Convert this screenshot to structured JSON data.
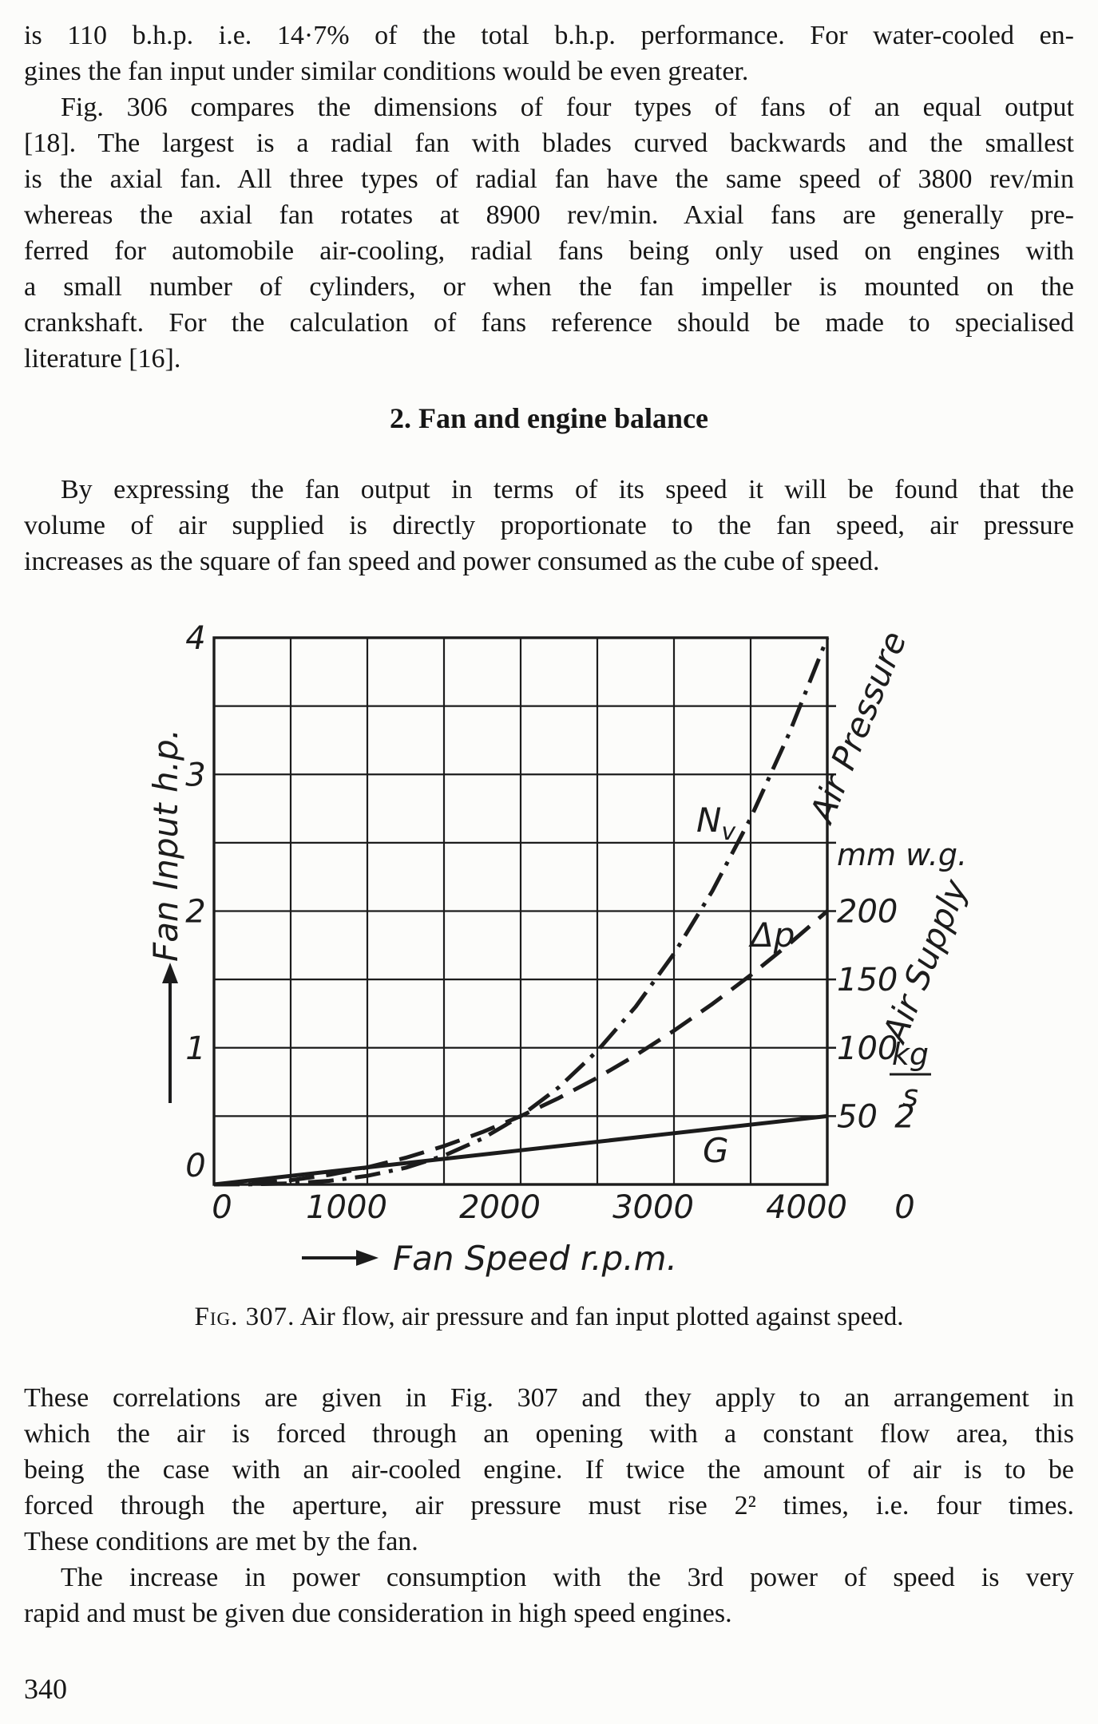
{
  "page": {
    "number": "340"
  },
  "content": {
    "p1": {
      "lines": [
        "is 110 b.h.p. i.e. 14·7% of the total b.h.p. performance. For water-cooled en-",
        "gines the fan input under similar conditions would be even greater."
      ]
    },
    "p2": {
      "lines": [
        "Fig. 306 compares the dimensions of four types of fans of an equal output",
        "[18]. The largest is a radial fan with blades curved backwards and the smallest",
        "is the axial fan. All three types of radial fan have the same speed of 3800 rev/min",
        "whereas the axial fan rotates at 8900 rev/min. Axial fans are generally pre-",
        "ferred for automobile air-cooling, radial fans being only used on engines with",
        "a small number of cylinders, or when the fan impeller is mounted on the",
        "crankshaft. For the calculation of fans reference should be made to specialised",
        "literature [16]."
      ]
    },
    "heading": "2. Fan and engine balance",
    "p3": {
      "lines": [
        "By expressing the fan output in terms of its speed it will be found that the",
        "volume of air supplied is directly proportionate to the fan speed, air pressure",
        "increases as the square of fan speed and power consumed as the cube of speed."
      ]
    },
    "caption": {
      "label": "Fig. 307.",
      "text": " Air flow, air pressure and fan input plotted against speed."
    },
    "p4": {
      "lines": [
        "These correlations are given in Fig. 307 and they apply to an arrangement in",
        "which the air is forced through an opening with a constant flow area, this",
        "being the case with an air-cooled engine. If twice the amount of air is to be",
        "forced through the aperture, air pressure must rise 2² times, i.e. four times.",
        "These conditions are met by the fan."
      ]
    },
    "p5": {
      "lines": [
        "The increase in power consumption with the 3rd power of speed is very",
        "rapid and must be given due consideration in high speed engines."
      ]
    }
  },
  "chart_data": {
    "type": "line",
    "title": "Fig. 307. Air flow, air pressure and fan input plotted against speed.",
    "xlabel": "Fan Speed r.p.m.",
    "ylabel_left": "Fan Input h.p.",
    "ylabel_pressure": "Air Pressure",
    "pressure_units": "mm w.g.",
    "ylabel_supply": "Air Supply",
    "supply_units": "kg/s",
    "supply_unit_num": "kg",
    "supply_unit_den": "s",
    "grid": "on",
    "legend": "labels-on-curves",
    "xlim": [
      0,
      4000
    ],
    "ylim_left": [
      0,
      4
    ],
    "pressure_lim": [
      0,
      400
    ],
    "supply_lim": [
      0,
      16
    ],
    "x_ticks": [
      0,
      1000,
      2000,
      3000,
      4000
    ],
    "y_ticks_left": [
      0,
      1,
      2,
      3,
      4
    ],
    "pressure_ticks": [
      50,
      100,
      150,
      200
    ],
    "supply_ticks": [
      0,
      2
    ],
    "grid_step_x": 500,
    "grid_step_y_hp": 0.5,
    "axis_hp_per_unit": {
      "left": 1,
      "pressure": 0.01,
      "supply": 0.25
    },
    "series": [
      {
        "name": "Nv",
        "label_main": "N",
        "label_sub": "v",
        "quantity": "Fan input",
        "unit": "h.p.",
        "axis": "left",
        "style": "dash-dot",
        "relation": "cube of speed",
        "x": [
          0,
          250,
          500,
          750,
          1000,
          1250,
          1500,
          1750,
          2000,
          2250,
          2500,
          2750,
          3000,
          3250,
          3500,
          3750,
          4000
        ],
        "y": [
          0,
          0.001,
          0.008,
          0.026,
          0.063,
          0.122,
          0.211,
          0.335,
          0.5,
          0.712,
          0.977,
          1.3,
          1.688,
          2.146,
          2.68,
          3.296,
          4
        ]
      },
      {
        "name": "Δp",
        "label_main": "Δp",
        "label_sub": "",
        "quantity": "Air pressure",
        "unit": "mm w.g.",
        "axis": "pressure",
        "style": "dashed",
        "relation": "square of speed",
        "x": [
          0,
          250,
          500,
          750,
          1000,
          1250,
          1500,
          1750,
          2000,
          2250,
          2500,
          2750,
          3000,
          3250,
          3500,
          3750,
          4000
        ],
        "y": [
          0,
          0.8,
          3.1,
          7,
          12.5,
          19.5,
          28.1,
          38.3,
          50,
          63.3,
          78.1,
          94.5,
          112.5,
          132,
          153.1,
          175.8,
          200
        ]
      },
      {
        "name": "G",
        "label_main": "G",
        "label_sub": "",
        "quantity": "Air supply",
        "unit": "kg/s",
        "axis": "supply",
        "style": "solid",
        "relation": "linear with speed",
        "x": [
          0,
          1000,
          2000,
          3000,
          4000
        ],
        "y": [
          0,
          0.5,
          1,
          1.5,
          2
        ]
      }
    ]
  }
}
